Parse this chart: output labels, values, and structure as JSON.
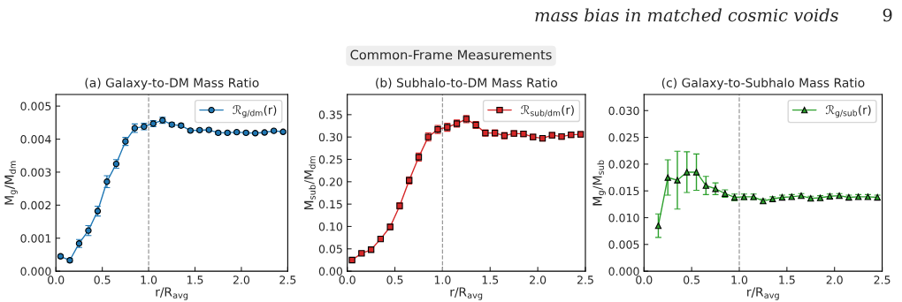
{
  "chart_data": [
    {
      "type": "line",
      "title": "(a) Galaxy-to-DM Mass Ratio",
      "xlabel": "r/R$_{avg}$",
      "ylabel": "M$_{g}$/M$_{dm}$",
      "annotations": [
        "mass bias in matched cosmic voids",
        "9",
        "Common-Frame Measurements"
      ],
      "x": [
        0.05,
        0.15,
        0.25,
        0.35,
        0.45,
        0.55,
        0.65,
        0.75,
        0.85,
        0.95,
        1.05,
        1.15,
        1.25,
        1.35,
        1.45,
        1.55,
        1.65,
        1.75,
        1.85,
        1.95,
        2.05,
        2.15,
        2.25,
        2.35,
        2.45
      ],
      "series": [
        {
          "name": "ℛ$_{g/dm}$(r)",
          "color": "#1f77b4",
          "marker": "circle",
          "values": [
            0.00045,
            0.00033,
            0.00084,
            0.00123,
            0.00182,
            0.00271,
            0.00325,
            0.00393,
            0.00433,
            0.00438,
            0.00447,
            0.00457,
            0.00444,
            0.00441,
            0.00426,
            0.00427,
            0.00428,
            0.00419,
            0.00419,
            0.00421,
            0.00419,
            0.00418,
            0.0042,
            0.00425,
            0.00422
          ],
          "errors": [
            5e-05,
            6e-05,
            0.00012,
            0.00015,
            0.00015,
            0.00018,
            0.00013,
            0.00012,
            0.00013,
            0.0001,
            9e-05,
            9e-05,
            6e-05,
            6e-05,
            5e-05,
            5e-05,
            5e-05,
            5e-05,
            4e-05,
            4e-05,
            4e-05,
            4e-05,
            4e-05,
            4e-05,
            4e-05
          ]
        }
      ],
      "xlim": [
        0.0,
        2.5
      ],
      "xticks": [
        {
          "value": 0.0,
          "label": "0.0"
        },
        {
          "value": 0.5,
          "label": "0.5"
        },
        {
          "value": 1.0,
          "label": "1.0"
        },
        {
          "value": 1.5,
          "label": "1.5"
        },
        {
          "value": 2.0,
          "label": "2.0"
        },
        {
          "value": 2.5,
          "label": "2.5"
        }
      ],
      "ylim": [
        0.0,
        0.00535
      ],
      "yticks": [
        {
          "value": 0.0,
          "label": "0.000"
        },
        {
          "value": 0.001,
          "label": "0.001"
        },
        {
          "value": 0.002,
          "label": "0.002"
        },
        {
          "value": 0.003,
          "label": "0.003"
        },
        {
          "value": 0.004,
          "label": "0.004"
        },
        {
          "value": 0.005,
          "label": "0.005"
        }
      ],
      "ref_lines": [
        {
          "axis": "x",
          "value": 1.0,
          "color": "#999999",
          "line_style": "dashed"
        }
      ],
      "legend": "top right",
      "grid": false
    },
    {
      "type": "line",
      "title": "(b) Subhalo-to-DM Mass Ratio",
      "xlabel": "r/R$_{avg}$",
      "ylabel": "M$_{sub}$/M$_{dm}$",
      "x": [
        0.05,
        0.15,
        0.25,
        0.35,
        0.45,
        0.55,
        0.65,
        0.75,
        0.85,
        0.95,
        1.05,
        1.15,
        1.25,
        1.35,
        1.45,
        1.55,
        1.65,
        1.75,
        1.85,
        1.95,
        2.05,
        2.15,
        2.25,
        2.35,
        2.45
      ],
      "series": [
        {
          "name": "ℛ$_{sub/dm}$(r)",
          "color": "#d62728",
          "marker": "square",
          "values": [
            0.025,
            0.04,
            0.048,
            0.072,
            0.099,
            0.146,
            0.203,
            0.255,
            0.3,
            0.317,
            0.322,
            0.33,
            0.34,
            0.327,
            0.309,
            0.309,
            0.303,
            0.308,
            0.307,
            0.3,
            0.297,
            0.304,
            0.301,
            0.305,
            0.306
          ],
          "errors": [
            0.003,
            0.004,
            0.004,
            0.005,
            0.006,
            0.007,
            0.008,
            0.009,
            0.009,
            0.009,
            0.009,
            0.008,
            0.008,
            0.008,
            0.007,
            0.007,
            0.007,
            0.006,
            0.006,
            0.006,
            0.006,
            0.006,
            0.006,
            0.006,
            0.006
          ]
        }
      ],
      "xlim": [
        0.0,
        2.5
      ],
      "xticks": [
        {
          "value": 0.0,
          "label": "0.0"
        },
        {
          "value": 0.5,
          "label": "0.5"
        },
        {
          "value": 1.0,
          "label": "1.0"
        },
        {
          "value": 1.5,
          "label": "1.5"
        },
        {
          "value": 2.0,
          "label": "2.0"
        },
        {
          "value": 2.5,
          "label": "2.5"
        }
      ],
      "ylim": [
        0.0,
        0.395
      ],
      "yticks": [
        {
          "value": 0.0,
          "label": "0.00"
        },
        {
          "value": 0.05,
          "label": "0.05"
        },
        {
          "value": 0.1,
          "label": "0.10"
        },
        {
          "value": 0.15,
          "label": "0.15"
        },
        {
          "value": 0.2,
          "label": "0.20"
        },
        {
          "value": 0.25,
          "label": "0.25"
        },
        {
          "value": 0.3,
          "label": "0.30"
        },
        {
          "value": 0.35,
          "label": "0.35"
        }
      ],
      "ref_lines": [
        {
          "axis": "x",
          "value": 1.0,
          "color": "#999999",
          "line_style": "dashed"
        }
      ],
      "legend": "top right",
      "grid": false
    },
    {
      "type": "line",
      "title": "(c) Galaxy-to-Subhalo Mass Ratio",
      "xlabel": "r/R$_{avg}$",
      "ylabel": "M$_{g}$/M$_{sub}$",
      "x": [
        0.15,
        0.25,
        0.35,
        0.45,
        0.55,
        0.65,
        0.75,
        0.85,
        0.95,
        1.05,
        1.15,
        1.25,
        1.35,
        1.45,
        1.55,
        1.65,
        1.75,
        1.85,
        1.95,
        2.05,
        2.15,
        2.25,
        2.35,
        2.45
      ],
      "series": [
        {
          "name": "ℛ$_{g/sub}$(r)",
          "color": "#2ca02c",
          "marker": "triangle",
          "values": [
            0.0085,
            0.0175,
            0.017,
            0.0185,
            0.0185,
            0.016,
            0.0154,
            0.0145,
            0.0138,
            0.0139,
            0.0139,
            0.0131,
            0.0135,
            0.0138,
            0.0139,
            0.0141,
            0.0136,
            0.0137,
            0.014,
            0.0141,
            0.0138,
            0.0139,
            0.0139,
            0.0138
          ],
          "errors": [
            0.0022,
            0.0033,
            0.0054,
            0.0038,
            0.0034,
            0.0017,
            0.0011,
            0.0007,
            0.0006,
            0.0005,
            0.0005,
            0.0004,
            0.0004,
            0.0004,
            0.0004,
            0.0004,
            0.0004,
            0.0004,
            0.0004,
            0.0004,
            0.0004,
            0.0004,
            0.0004,
            0.0004
          ]
        }
      ],
      "xlim": [
        0.0,
        2.5
      ],
      "xticks": [
        {
          "value": 0.0,
          "label": "0.0"
        },
        {
          "value": 0.5,
          "label": "0.5"
        },
        {
          "value": 1.0,
          "label": "1.0"
        },
        {
          "value": 1.5,
          "label": "1.5"
        },
        {
          "value": 2.0,
          "label": "2.0"
        },
        {
          "value": 2.5,
          "label": "2.5"
        }
      ],
      "ylim": [
        0.0,
        0.033
      ],
      "yticks": [
        {
          "value": 0.0,
          "label": "0.000"
        },
        {
          "value": 0.005,
          "label": "0.005"
        },
        {
          "value": 0.01,
          "label": "0.010"
        },
        {
          "value": 0.015,
          "label": "0.015"
        },
        {
          "value": 0.02,
          "label": "0.020"
        },
        {
          "value": 0.025,
          "label": "0.025"
        },
        {
          "value": 0.03,
          "label": "0.030"
        }
      ],
      "ref_lines": [
        {
          "axis": "x",
          "value": 1.0,
          "color": "#999999",
          "line_style": "dashed"
        }
      ],
      "legend": "top right",
      "grid": false
    }
  ]
}
